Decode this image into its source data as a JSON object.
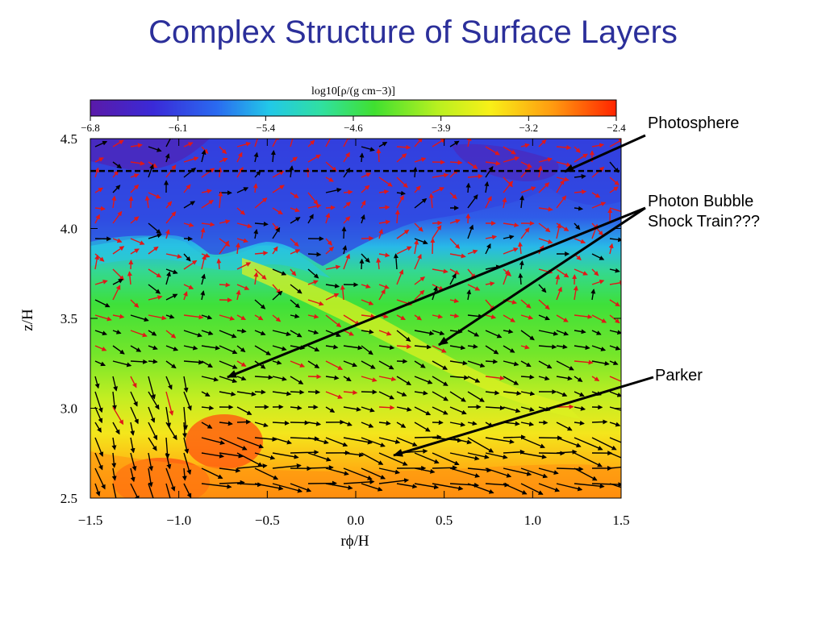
{
  "slide": {
    "title": "Complex Structure of Surface Layers"
  },
  "annotations": {
    "photosphere": "Photosphere",
    "photon_bubble_line1": "Photon Bubble",
    "photon_bubble_line2": "Shock Train???",
    "parker": "Parker"
  },
  "chart_data": {
    "type": "heatmap",
    "title": "",
    "xlabel": "rϕ/H",
    "ylabel": "z/H",
    "xlim": [
      -1.5,
      1.5
    ],
    "ylim": [
      2.5,
      4.5
    ],
    "x_ticks": [
      "−1.5",
      "−1.0",
      "−0.5",
      "0.0",
      "0.5",
      "1.0",
      "1.5"
    ],
    "y_ticks": [
      "2.5",
      "3.0",
      "3.5",
      "4.0",
      "4.5"
    ],
    "colorbar": {
      "label": "log10[ρ/(g cm−3)]",
      "range": [
        -6.8,
        -2.4
      ],
      "ticks": [
        "−6.8",
        "−6.1",
        "−5.4",
        "−4.6",
        "−3.9",
        "−3.2",
        "−2.4"
      ]
    },
    "photosphere_z": 4.32,
    "colors": {
      "low": "#5a1aa8",
      "mid": "#28e028",
      "high": "#ff2400",
      "vectors_low_density": "#e01818",
      "vectors_high_density": "#000000"
    }
  }
}
